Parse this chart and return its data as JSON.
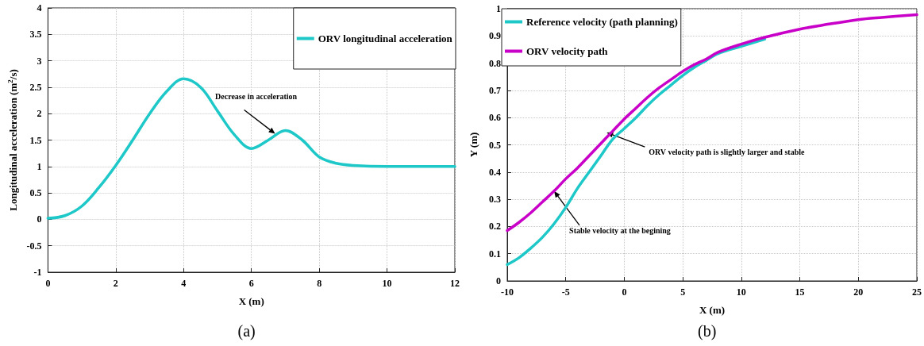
{
  "chart_data": [
    {
      "type": "line",
      "title": "(a)",
      "xlabel": "X (m)",
      "ylabel": "Longitudinal acceleration (m$^{2}$/s)",
      "x": [
        0,
        0.5,
        1,
        1.5,
        2,
        2.5,
        3,
        3.5,
        4,
        4.5,
        5,
        5.5,
        6,
        6.5,
        7,
        7.5,
        8,
        8.5,
        9,
        10,
        11,
        12
      ],
      "series": [
        {
          "name": "ORV longitudinal acceleration",
          "color": "#1ec8c8",
          "values": [
            0.02,
            0.07,
            0.25,
            0.6,
            1.02,
            1.5,
            2.0,
            2.42,
            2.66,
            2.5,
            2.05,
            1.6,
            1.34,
            1.5,
            1.68,
            1.5,
            1.18,
            1.06,
            1.02,
            1.0,
            1.0,
            1.0
          ]
        }
      ],
      "xlim": [
        0,
        12
      ],
      "xticks": [
        0,
        2,
        4,
        6,
        8,
        10,
        12
      ],
      "ylim": [
        -1,
        4
      ],
      "yticks": [
        -1,
        -0.5,
        0,
        0.5,
        1,
        1.5,
        2,
        2.5,
        3,
        3.5,
        4
      ],
      "annotations": [
        {
          "text": "Decrease in acceleration",
          "x": 6.7,
          "y": 1.62
        }
      ],
      "grid": true,
      "legend": "top right",
      "marker": "none",
      "line_style": "solid"
    },
    {
      "type": "line",
      "title": "(b)",
      "xlabel": "X (m)",
      "ylabel": "Y (m)",
      "x": [
        -10,
        -9,
        -8,
        -7,
        -6,
        -5,
        -4,
        -3,
        -2,
        -1,
        0,
        1,
        2,
        3,
        4,
        5,
        6,
        7,
        8,
        10,
        12,
        15,
        17,
        20,
        22,
        25
      ],
      "series": [
        {
          "name": "Reference velocity (path planning)",
          "color": "#1ec8c8",
          "values": [
            0.06,
            0.085,
            0.12,
            0.16,
            0.21,
            0.27,
            0.34,
            0.4,
            0.46,
            0.52,
            0.56,
            0.6,
            0.645,
            0.685,
            0.72,
            0.755,
            0.785,
            0.81,
            0.835,
            0.862,
            0.888,
            null,
            null,
            null,
            null,
            null
          ]
        },
        {
          "name": "ORV velocity path",
          "color": "#c800c8",
          "values": [
            0.185,
            0.215,
            0.25,
            0.29,
            0.33,
            0.375,
            0.415,
            0.46,
            0.505,
            0.55,
            0.595,
            0.635,
            0.675,
            0.71,
            0.74,
            0.77,
            0.795,
            0.815,
            0.84,
            0.87,
            0.895,
            0.925,
            0.94,
            0.96,
            0.968,
            0.978
          ]
        }
      ],
      "xlim": [
        -10,
        25
      ],
      "xticks": [
        -10,
        -5,
        0,
        5,
        10,
        15,
        20,
        25
      ],
      "ylim": [
        0,
        1
      ],
      "yticks": [
        0,
        0.1,
        0.2,
        0.3,
        0.4,
        0.5,
        0.6,
        0.7,
        0.8,
        0.9,
        1
      ],
      "annotations": [
        {
          "text": "ORV velocity path is slightly larger and stable",
          "x": -1.5,
          "y": 0.545
        },
        {
          "text": "Stable velocity at the begining",
          "x": -6,
          "y": 0.33
        }
      ],
      "grid": true,
      "legend": "top left",
      "marker": "none",
      "line_style": "solid"
    }
  ]
}
